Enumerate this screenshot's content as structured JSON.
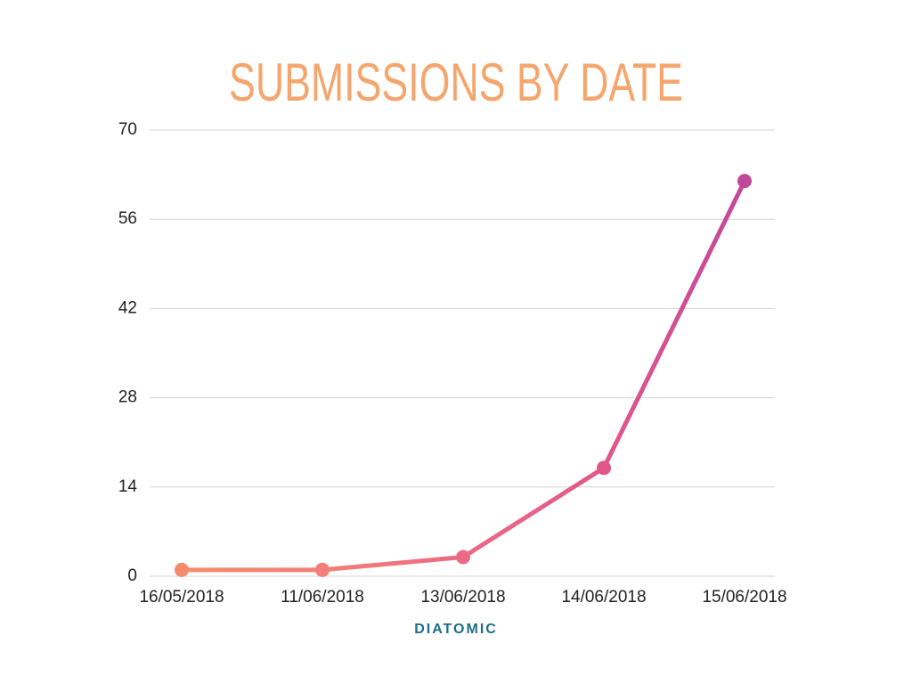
{
  "chart_data": {
    "type": "line",
    "title": "SUBMISSIONS BY DATE",
    "x_label": "DIATOMIC",
    "categories": [
      "16/05/2018",
      "11/06/2018",
      "13/06/2018",
      "14/06/2018",
      "15/06/2018"
    ],
    "series": [
      {
        "values": [
          1,
          1,
          3,
          17,
          62
        ],
        "colors": [
          "#f58b6c",
          "#f47e77",
          "#ec6a85",
          "#e1578a",
          "#c2489c"
        ]
      }
    ],
    "ylim": [
      0,
      70
    ],
    "yticks": [
      0,
      14,
      28,
      42,
      56,
      70
    ],
    "grid": true
  }
}
